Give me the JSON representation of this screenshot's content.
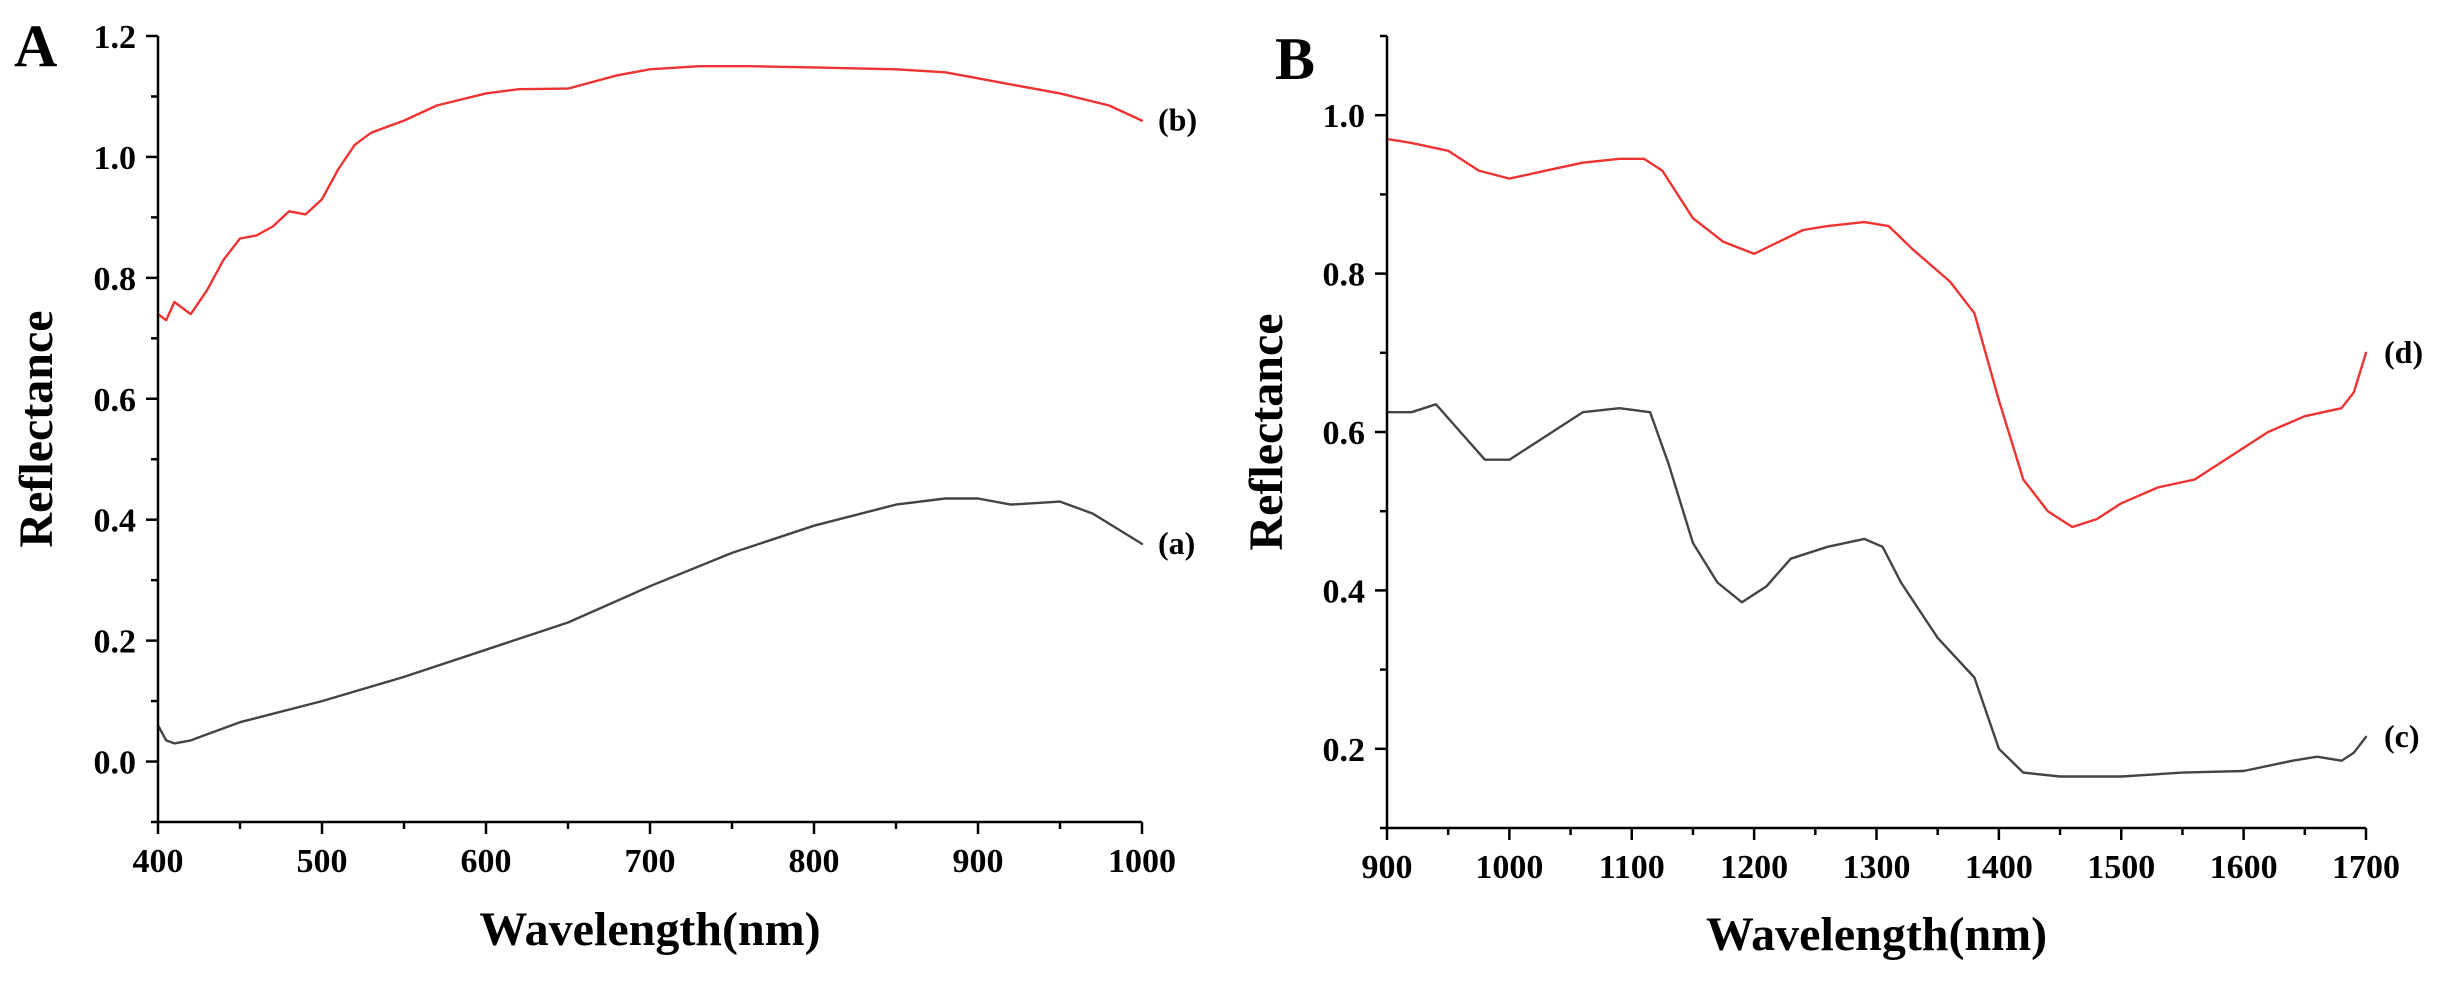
{
  "chart_data": [
    {
      "panel": "A",
      "type": "line",
      "xlabel": "Wavelength(nm)",
      "ylabel": "Reflectance",
      "xlim": [
        400,
        1000
      ],
      "ylim": [
        -0.1,
        1.2
      ],
      "xticks": [
        400,
        500,
        600,
        700,
        800,
        900,
        1000
      ],
      "yticks": [
        0.0,
        0.2,
        0.4,
        0.6,
        0.8,
        1.0,
        1.2
      ],
      "ytick_labels": [
        "0.0",
        "0.2",
        "0.4",
        "0.6",
        "0.8",
        "1.0",
        "1.2"
      ],
      "series": [
        {
          "name": "(b)",
          "color": "#ee3333",
          "x": [
            400,
            405,
            410,
            415,
            420,
            430,
            440,
            450,
            460,
            470,
            480,
            490,
            500,
            510,
            520,
            530,
            550,
            570,
            600,
            620,
            650,
            680,
            700,
            730,
            760,
            800,
            850,
            880,
            900,
            920,
            950,
            980,
            1000
          ],
          "y": [
            0.74,
            0.73,
            0.76,
            0.75,
            0.74,
            0.78,
            0.83,
            0.865,
            0.87,
            0.885,
            0.91,
            0.905,
            0.93,
            0.98,
            1.02,
            1.04,
            1.06,
            1.085,
            1.105,
            1.112,
            1.113,
            1.135,
            1.145,
            1.15,
            1.15,
            1.148,
            1.145,
            1.14,
            1.13,
            1.12,
            1.105,
            1.085,
            1.06
          ]
        },
        {
          "name": "(a)",
          "color": "#444444",
          "x": [
            400,
            405,
            410,
            420,
            430,
            450,
            500,
            550,
            600,
            650,
            700,
            750,
            800,
            850,
            880,
            900,
            920,
            950,
            970,
            1000
          ],
          "y": [
            0.06,
            0.035,
            0.03,
            0.035,
            0.045,
            0.065,
            0.1,
            0.14,
            0.185,
            0.23,
            0.29,
            0.345,
            0.39,
            0.425,
            0.435,
            0.435,
            0.425,
            0.43,
            0.41,
            0.36
          ]
        }
      ]
    },
    {
      "panel": "B",
      "type": "line",
      "xlabel": "Wavelength(nm)",
      "ylabel": "Reflectance",
      "xlim": [
        900,
        1700
      ],
      "ylim": [
        0.1,
        1.1
      ],
      "xticks": [
        900,
        1000,
        1100,
        1200,
        1300,
        1400,
        1500,
        1600,
        1700
      ],
      "yticks": [
        0.2,
        0.4,
        0.6,
        0.8,
        1.0
      ],
      "ytick_labels": [
        "0.2",
        "0.4",
        "0.6",
        "0.8",
        "1.0"
      ],
      "series": [
        {
          "name": "(d)",
          "color": "#ee3333",
          "x": [
            900,
            920,
            950,
            975,
            1000,
            1030,
            1060,
            1090,
            1110,
            1125,
            1150,
            1175,
            1200,
            1220,
            1240,
            1260,
            1290,
            1310,
            1330,
            1360,
            1380,
            1400,
            1420,
            1440,
            1460,
            1480,
            1500,
            1530,
            1560,
            1590,
            1620,
            1650,
            1680,
            1690,
            1700
          ],
          "y": [
            0.97,
            0.965,
            0.955,
            0.93,
            0.92,
            0.93,
            0.94,
            0.945,
            0.945,
            0.93,
            0.87,
            0.84,
            0.825,
            0.84,
            0.855,
            0.86,
            0.865,
            0.86,
            0.83,
            0.79,
            0.75,
            0.64,
            0.54,
            0.5,
            0.48,
            0.49,
            0.51,
            0.53,
            0.54,
            0.57,
            0.6,
            0.62,
            0.63,
            0.65,
            0.7
          ]
        },
        {
          "name": "(c)",
          "color": "#444444",
          "x": [
            900,
            920,
            940,
            960,
            980,
            1000,
            1030,
            1060,
            1090,
            1115,
            1130,
            1150,
            1170,
            1190,
            1210,
            1230,
            1260,
            1290,
            1305,
            1320,
            1350,
            1380,
            1400,
            1420,
            1450,
            1500,
            1550,
            1600,
            1640,
            1660,
            1680,
            1690,
            1700
          ],
          "y": [
            0.625,
            0.625,
            0.635,
            0.6,
            0.565,
            0.565,
            0.595,
            0.625,
            0.63,
            0.625,
            0.56,
            0.46,
            0.41,
            0.385,
            0.405,
            0.44,
            0.455,
            0.465,
            0.455,
            0.41,
            0.34,
            0.29,
            0.2,
            0.17,
            0.165,
            0.165,
            0.17,
            0.172,
            0.185,
            0.19,
            0.185,
            0.195,
            0.215
          ]
        }
      ]
    }
  ]
}
